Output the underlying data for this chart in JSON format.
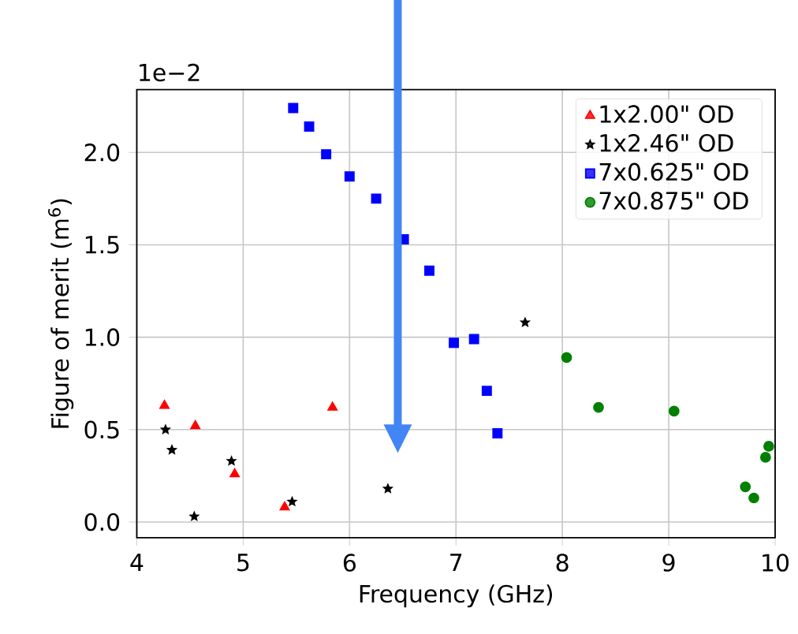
{
  "chart_data": {
    "type": "scatter",
    "xlabel": "Frequency (GHz)",
    "ylabel": "Figure of merit (m$^{6}$)",
    "annotations": [
      "1e−2"
    ],
    "xlim": [
      4,
      10
    ],
    "ylim": [
      -0.085,
      2.34
    ],
    "xticks": [
      4,
      5,
      6,
      7,
      8,
      9,
      10
    ],
    "yticks": [
      {
        "value": 0,
        "label": "0.0"
      },
      {
        "value": 0.5,
        "label": "0.5"
      },
      {
        "value": 1,
        "label": "1.0"
      },
      {
        "value": 1.5,
        "label": "1.5"
      },
      {
        "value": 2,
        "label": "2.0"
      }
    ],
    "grid": true,
    "legend": "top right",
    "series": [
      {
        "name": "1x2.00\" OD",
        "color": "#ff0000",
        "marker": "triangle",
        "x": [
          4.26,
          4.55,
          4.92,
          5.39,
          5.84
        ],
        "values": [
          0.63,
          0.52,
          0.26,
          0.08,
          0.62
        ]
      },
      {
        "name": "1x2.46\" OD",
        "color": "#000000",
        "marker": "star",
        "x": [
          4.27,
          4.33,
          4.54,
          4.89,
          5.46,
          6.36,
          7.65
        ],
        "values": [
          0.5,
          0.39,
          0.03,
          0.33,
          0.11,
          0.18,
          1.08
        ]
      },
      {
        "name": "7x0.625\" OD",
        "color": "#0000ff",
        "marker": "square",
        "x": [
          5.47,
          5.62,
          5.78,
          6.0,
          6.25,
          6.51,
          6.75,
          6.98,
          7.17,
          7.29,
          7.39
        ],
        "values": [
          2.24,
          2.14,
          1.99,
          1.87,
          1.75,
          1.53,
          1.36,
          0.97,
          0.99,
          0.71,
          0.48
        ]
      },
      {
        "name": "7x0.875\" OD",
        "color": "#008000",
        "marker": "circle",
        "x": [
          8.04,
          8.34,
          9.05,
          9.72,
          9.8,
          9.91,
          9.94
        ],
        "values": [
          0.89,
          0.62,
          0.6,
          0.19,
          0.13,
          0.35,
          0.41
        ]
      }
    ]
  }
}
